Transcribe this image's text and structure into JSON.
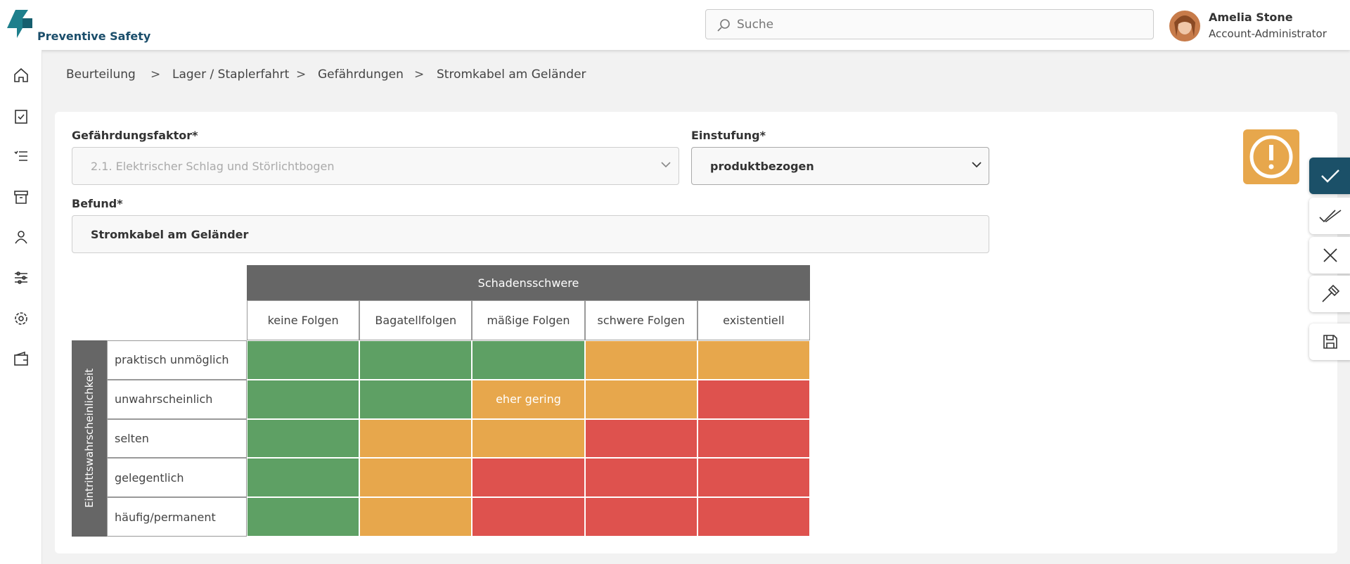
{
  "header": {
    "brand": "Preventive Safety",
    "search_placeholder": "Suche",
    "user_name": "Amelia Stone",
    "user_role": "Account-Administrator"
  },
  "breadcrumb": [
    "Beurteilung",
    "Lager / Staplerfahrt",
    "Gefährdungen",
    "Stromkabel am Geländer"
  ],
  "form": {
    "factor_label": "Gefährdungsfaktor*",
    "factor_value": "2.1. Elektrischer Schlag und Störlichtbogen",
    "classification_label": "Einstufung*",
    "classification_value": "produktbezogen",
    "finding_label": "Befund*",
    "finding_value": "Stromkabel am Geländer"
  },
  "matrix": {
    "column_title": "Schadensschwere",
    "row_title": "Eintrittswahrscheinlichkeit",
    "columns": [
      "keine Folgen",
      "Bagatellfolgen",
      "mäßige Folgen",
      "schwere Folgen",
      "existentiell"
    ],
    "rows": [
      "praktisch unmöglich",
      "unwahrscheinlich",
      "selten",
      "gelegentlich",
      "häufig/permanent"
    ],
    "cells": [
      [
        "#5ea064",
        "#5ea064",
        "#5ea064",
        "#e7a74c",
        "#e7a74c"
      ],
      [
        "#5ea064",
        "#5ea064",
        "#e7a74c",
        "#e7a74c",
        "#de524e"
      ],
      [
        "#5ea064",
        "#e7a74c",
        "#e7a74c",
        "#de524e",
        "#de524e"
      ],
      [
        "#5ea064",
        "#e7a74c",
        "#de524e",
        "#de524e",
        "#de524e"
      ],
      [
        "#5ea064",
        "#e7a74c",
        "#de524e",
        "#de524e",
        "#de524e"
      ]
    ],
    "cell_labels": {
      "1": {
        "2": "eher gering"
      }
    }
  }
}
